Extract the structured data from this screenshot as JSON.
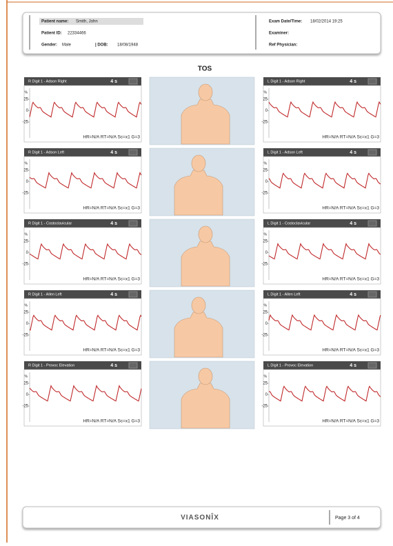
{
  "header": {
    "patient_name_label": "Patient name:",
    "patient_name": "Smith, John",
    "patient_id_label": "Patient ID:",
    "patient_id": "22334466",
    "gender_label": "Gender:",
    "gender": "Male",
    "dob_label": "| DOB:",
    "dob": "18/08/1948",
    "exam_label": "Exam Date/Time:",
    "exam": "18/02/2014 19:25",
    "examiner_label": "Examiner:",
    "ref_label": "Ref Physician:"
  },
  "title": "TOS",
  "panel_common": {
    "duration": "4 s",
    "info": "HR=N/A RT=N/A Sc=x1 G=3",
    "unit": "%",
    "yticks": [
      25,
      0,
      -25
    ]
  },
  "rows": [
    {
      "left": "R Digit 1 - Adson Right",
      "right": "L Digit 1 - Adson Right"
    },
    {
      "left": "R Digit 1 - Adson Left",
      "right": "L Digit 1 - Adson Left"
    },
    {
      "left": "R Digit 1 - Costoclavicular",
      "right": "L Digit 1 - Costoclavicular"
    },
    {
      "left": "R Digit 1 - Allen Left",
      "right": "L Digit 1 - Allen Left"
    },
    {
      "left": "R Digit 1 - Provoc Elevation",
      "right": "L Digit 1 - Provoc Elevation"
    }
  ],
  "footer": {
    "brand": "VIASONÎX",
    "page": "Page 3 of 4"
  }
}
